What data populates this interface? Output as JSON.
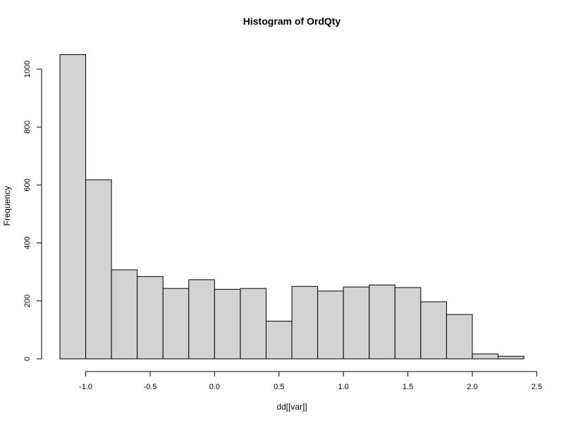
{
  "chart_data": {
    "type": "bar",
    "subtype": "histogram",
    "title": "Histogram of OrdQty",
    "xlabel": "dd[[var]]",
    "ylabel": "Frequency",
    "bin_edges": [
      -1.2,
      -1.0,
      -0.8,
      -0.6,
      -0.4,
      -0.2,
      0.0,
      0.2,
      0.4,
      0.6,
      0.8,
      1.0,
      1.2,
      1.4,
      1.6,
      1.8,
      2.0,
      2.2,
      2.4
    ],
    "values": [
      1050,
      618,
      307,
      284,
      243,
      273,
      240,
      243,
      130,
      250,
      234,
      248,
      255,
      246,
      197,
      153,
      17,
      9
    ],
    "xlim": [
      -1.2,
      2.5
    ],
    "ylim": [
      0,
      1050
    ],
    "x_ticks": [
      -1.0,
      -0.5,
      0.0,
      0.5,
      1.0,
      1.5,
      2.0,
      2.5
    ],
    "x_tick_labels": [
      "-1.0",
      "-0.5",
      "0.0",
      "0.5",
      "1.0",
      "1.5",
      "2.0",
      "2.5"
    ],
    "y_ticks": [
      0,
      200,
      400,
      600,
      800,
      1000
    ],
    "y_tick_labels": [
      "0",
      "200",
      "400",
      "600",
      "800",
      "1000"
    ],
    "bar_fill": "#d3d3d3",
    "bar_stroke": "#000000",
    "grid": false,
    "legend": "none"
  }
}
